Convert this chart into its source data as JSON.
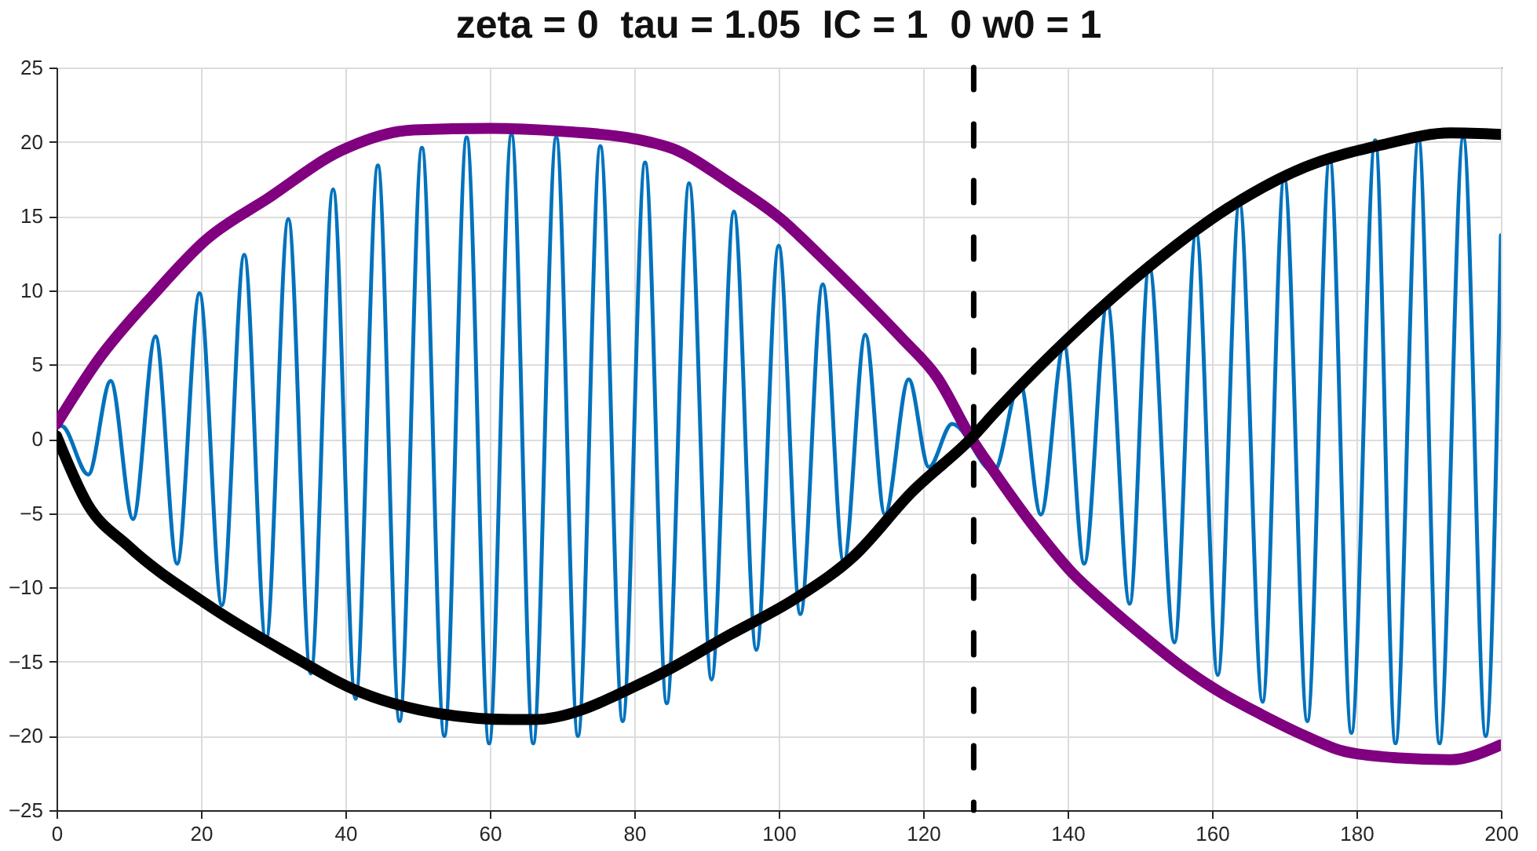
{
  "chart_data": {
    "type": "line",
    "title": "zeta = 0  tau = 1.05  IC = 1  0 w0 = 1",
    "xlim": [
      0,
      200
    ],
    "xticks": [
      0,
      20,
      40,
      60,
      80,
      100,
      120,
      140,
      160,
      180,
      200
    ],
    "ylim": [
      -25,
      25
    ],
    "yticks": [
      -25,
      -20,
      -15,
      -10,
      -5,
      0,
      5,
      10,
      15,
      20,
      25
    ],
    "grid": true,
    "series": [
      {
        "color": "#0072bd",
        "x": [
          0,
          1,
          4.4,
          7.5,
          10.6,
          13.7,
          16.7,
          19.8,
          22.9,
          26,
          29,
          32.1,
          35.2,
          38.3,
          41.4,
          44.5,
          47.5,
          50.6,
          53.7,
          56.8,
          59.9,
          63,
          66,
          69.2,
          72.2,
          75.3,
          78.4,
          81.5,
          84.5,
          87.6,
          90.7,
          93.8,
          96.9,
          100,
          103,
          106.1,
          109,
          112,
          114.7,
          118,
          120.8,
          124,
          129.8,
          133.4,
          136.3,
          139.5,
          142.3,
          145.5,
          148.6,
          151.3,
          154.8,
          157.8,
          160.8,
          163.8,
          167,
          170,
          173.2,
          176.3,
          179.3,
          182.6,
          185.4,
          188.6,
          191.5,
          194.8,
          197.9,
          200
        ],
        "values": [
          1,
          0.8,
          -2.4,
          3.9,
          -5.4,
          6.9,
          -8.4,
          9.8,
          -11.2,
          12.4,
          -13.6,
          14.8,
          -15.8,
          16.8,
          -17.5,
          18.4,
          -19,
          19.6,
          -20,
          20.3,
          -20.5,
          20.5,
          -20.5,
          20.3,
          -20,
          19.7,
          -19,
          18.6,
          -17.8,
          17.2,
          -16.2,
          15.3,
          -14.2,
          13,
          -11.8,
          10.4,
          -8.3,
          7,
          -5.1,
          4,
          -1.9,
          1,
          -2.2,
          3.8,
          -5.1,
          6.3,
          -8.4,
          9.1,
          -11.1,
          11.6,
          -13.7,
          13.9,
          -15.9,
          15.9,
          -17.7,
          17.6,
          -19,
          18.9,
          -19.8,
          20.1,
          -20.5,
          20.2,
          -20.5,
          20.3,
          -20,
          13.7
        ]
      },
      {
        "color": "#800080",
        "x": [
          0,
          5.6,
          13.6,
          20.7,
          29.3,
          39.4,
          49.5,
          60,
          70,
          80,
          86,
          93,
          100.3,
          106,
          111,
          117,
          122,
          126.6,
          129.8,
          135,
          140.6,
          145,
          151.3,
          156,
          160.6,
          167,
          172.9,
          178,
          183.6,
          193,
          200
        ],
        "values": [
          1,
          5.2,
          9.8,
          13.4,
          16.2,
          19.4,
          20.8,
          20.9,
          20.7,
          20.2,
          19.4,
          17.3,
          14.8,
          12.2,
          9.8,
          6.8,
          4.1,
          0.1,
          -2.2,
          -5.7,
          -9,
          -11,
          -13.6,
          -15.4,
          -16.9,
          -18.6,
          -20,
          -21,
          -21.4,
          -21.6,
          -20.6
        ]
      },
      {
        "color": "#000000",
        "x": [
          0,
          4.3,
          9.9,
          20.7,
          31.5,
          42.3,
          53,
          63,
          65.9,
          82.5,
          93.2,
          102.5,
          110.4,
          118.4,
          127,
          129.8,
          140.6,
          151.3,
          162.1,
          172.9,
          183.6,
          193,
          200
        ],
        "values": [
          0.2,
          -4.4,
          -7.2,
          -11.1,
          -14.3,
          -17.1,
          -18.5,
          -18.9,
          -18.9,
          -16.1,
          -13.2,
          -10.7,
          -7.9,
          -3.6,
          0.2,
          1.7,
          7,
          11.6,
          15.5,
          18.3,
          19.8,
          20.6,
          20.5
        ]
      }
    ],
    "ref_lines": [
      {
        "axis": "x",
        "value": 127,
        "color": "#000000",
        "line_style": "dashed"
      }
    ]
  }
}
